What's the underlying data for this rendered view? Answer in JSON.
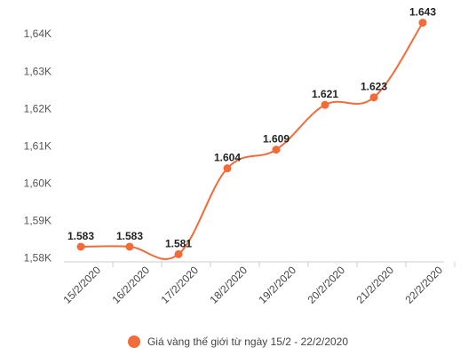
{
  "chart_data": {
    "type": "line",
    "title": "",
    "xlabel": "",
    "ylabel": "",
    "categories": [
      "15/2/2020",
      "16/2/2020",
      "17/2/2020",
      "18/2/2020",
      "19/2/2020",
      "20/2/2020",
      "21/2/2020",
      "22/2/2020"
    ],
    "series": [
      {
        "name": "Giá vàng thế giới từ ngày 15/2 - 22/2/2020",
        "values": [
          1583,
          1583,
          1581,
          1604,
          1609,
          1621,
          1623,
          1643
        ],
        "data_labels": [
          "1.583",
          "1.583",
          "1.581",
          "1.604",
          "1.609",
          "1.621",
          "1.623",
          "1.643"
        ],
        "color": "#f26b38"
      }
    ],
    "ylim": [
      1578,
      1646
    ],
    "yticks": [
      1580,
      1590,
      1600,
      1610,
      1620,
      1630,
      1640
    ],
    "ytick_labels": [
      "1,58K",
      "1,59K",
      "1,60K",
      "1,61K",
      "1,62K",
      "1,63K",
      "1,64K"
    ],
    "grid": false,
    "legend_position": "bottom"
  }
}
